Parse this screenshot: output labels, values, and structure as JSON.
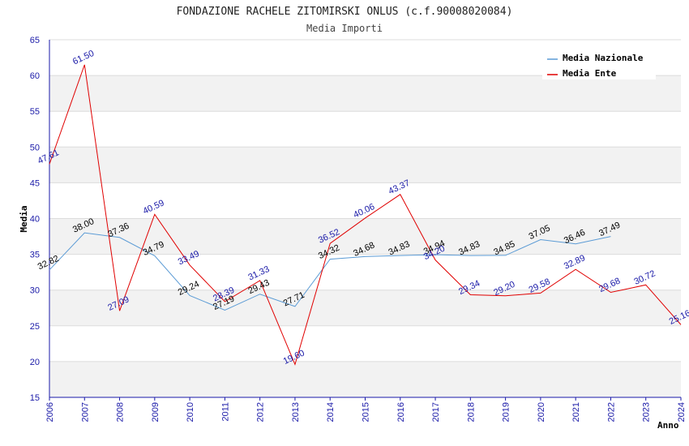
{
  "chart_data": {
    "type": "line",
    "title": "FONDAZIONE RACHELE ZITOMIRSKI ONLUS (c.f.90008020084)",
    "subtitle": "Media Importi",
    "xlabel": "Anno",
    "ylabel": "Media",
    "ylim": [
      15,
      65
    ],
    "yticks": [
      15,
      20,
      25,
      30,
      35,
      40,
      45,
      50,
      55,
      60,
      65
    ],
    "x": [
      "2006",
      "2007",
      "2008",
      "2009",
      "2010",
      "2011",
      "2012",
      "2013",
      "2014",
      "2015",
      "2016",
      "2017",
      "2018",
      "2019",
      "2020",
      "2021",
      "2022",
      "2023",
      "2024"
    ],
    "grid": true,
    "legend_position": "top-right",
    "series": [
      {
        "name": "Media Nazionale",
        "color": "#5b9bd5",
        "label_color": "#000000",
        "values": [
          32.82,
          38.0,
          37.36,
          34.79,
          29.24,
          27.19,
          29.43,
          27.71,
          34.32,
          34.68,
          34.83,
          34.94,
          34.83,
          34.85,
          37.05,
          36.46,
          37.49,
          null,
          null
        ],
        "labels": [
          "32.82",
          "38.00",
          "37.36",
          "34.79",
          "29.24",
          "27.19",
          "29.43",
          "27.71",
          "34.32",
          "34.68",
          "34.83",
          "34.94",
          "34.83",
          "34.85",
          "37.05",
          "36.46",
          "37.49",
          null,
          null
        ]
      },
      {
        "name": "Media Ente",
        "color": "#e00000",
        "label_color": "#1a1aa8",
        "values": [
          47.61,
          61.5,
          27.09,
          40.59,
          33.49,
          28.39,
          31.33,
          19.6,
          36.52,
          40.06,
          43.37,
          34.2,
          29.34,
          29.2,
          29.58,
          32.89,
          29.68,
          30.72,
          25.16
        ],
        "labels": [
          "47.61",
          "61.50",
          "27.09",
          "40.59",
          "33.49",
          "28.39",
          "31.33",
          "19.60",
          "36.52",
          "40.06",
          "43.37",
          "34.20",
          "29.34",
          "29.20",
          "29.58",
          "32.89",
          "29.68",
          "30.72",
          "25.16"
        ]
      }
    ]
  }
}
